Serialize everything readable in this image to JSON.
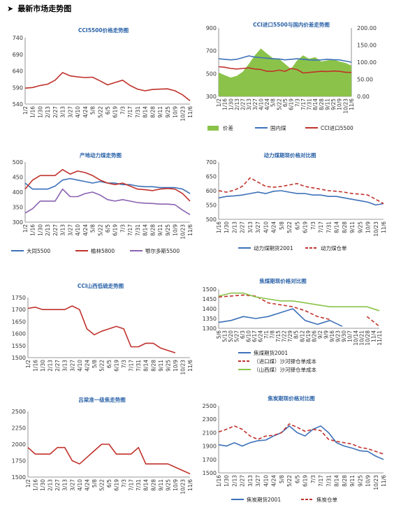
{
  "header": {
    "arrow": "➤",
    "title": "最新市场走势图"
  },
  "colors": {
    "blue": "#3d71b8",
    "red": "#c0312b",
    "purple": "#8a62b0",
    "green": "#8bc34a",
    "darkred": "#b8312f",
    "grayline": "#888888"
  },
  "chart_data": [
    {
      "id": "cci5500",
      "type": "line",
      "title": "CCI5500价格走势图",
      "x": [
        "1/2",
        "1/16",
        "1/30",
        "2/13",
        "2/27",
        "3/13",
        "3/27",
        "4/10",
        "4/24",
        "5/8",
        "5/22",
        "6/5",
        "6/19",
        "7/3",
        "7/17",
        "7/31",
        "8/14",
        "8/28",
        "9/11",
        "9/25",
        "10/9",
        "10/23",
        "11/6"
      ],
      "ylim": [
        540,
        740
      ],
      "yticks": [
        540,
        590,
        640,
        690,
        740
      ],
      "series": [
        {
          "name": "",
          "color": "#c0312b",
          "values": [
            588,
            590,
            596,
            600,
            612,
            635,
            625,
            622,
            620,
            621,
            610,
            598,
            605,
            612,
            596,
            585,
            580,
            584,
            585,
            586,
            580,
            568,
            550
          ]
        }
      ]
    },
    {
      "id": "cci_import",
      "type": "line",
      "title": "CCI进口5500与国内价差走势图",
      "x": [
        "1/2",
        "1/16",
        "1/30",
        "2/13",
        "2/27",
        "3/13",
        "3/27",
        "4/10",
        "4/24",
        "5/8",
        "5/22",
        "6/5",
        "6/19",
        "7/3",
        "7/17",
        "7/31",
        "8/14",
        "8/28",
        "9/11",
        "9/25",
        "10/9",
        "10/23",
        "11/6"
      ],
      "ylim": [
        300,
        900
      ],
      "yticks": [
        300,
        500,
        700,
        900
      ],
      "y2lim": [
        0,
        200
      ],
      "y2ticks": [
        "0.00",
        "50.00",
        "100.00",
        "150.00",
        "200.00"
      ],
      "series": [
        {
          "name": "价差",
          "type": "area",
          "axis": "right",
          "color": "#8bc34a",
          "values": [
            70,
            62,
            55,
            60,
            72,
            95,
            120,
            140,
            125,
            112,
            110,
            95,
            80,
            105,
            120,
            110,
            115,
            102,
            105,
            108,
            102,
            98,
            90
          ]
        },
        {
          "name": "国内煤",
          "color": "#3d71b8",
          "values": [
            630,
            625,
            620,
            625,
            640,
            655,
            645,
            640,
            635,
            630,
            628,
            620,
            625,
            630,
            625,
            620,
            618,
            620,
            625,
            622,
            620,
            610,
            600
          ]
        },
        {
          "name": "CCI进口5500",
          "color": "#c0312b",
          "values": [
            560,
            555,
            545,
            540,
            545,
            550,
            540,
            535,
            520,
            520,
            530,
            520,
            545,
            535,
            505,
            510,
            515,
            520,
            518,
            522,
            520,
            512,
            510
          ]
        }
      ]
    },
    {
      "id": "origin",
      "type": "line",
      "title": "产地动力煤走势图",
      "x": [
        "1/2",
        "1/16",
        "1/30",
        "2/13",
        "2/27",
        "3/13",
        "3/27",
        "4/10",
        "4/24",
        "5/8",
        "5/22",
        "6/5",
        "6/19",
        "7/3",
        "7/17",
        "7/31",
        "8/14",
        "8/28",
        "9/11",
        "9/25",
        "10/9",
        "10/23",
        "11/6"
      ],
      "ylim": [
        300,
        500
      ],
      "yticks": [
        300,
        350,
        400,
        450,
        500
      ],
      "series": [
        {
          "name": "大同5500",
          "color": "#3d71b8",
          "values": [
            430,
            410,
            410,
            410,
            420,
            440,
            445,
            440,
            435,
            430,
            435,
            430,
            430,
            425,
            425,
            420,
            418,
            418,
            415,
            415,
            415,
            410,
            395
          ]
        },
        {
          "name": "榆林5800",
          "color": "#c0312b",
          "values": [
            410,
            440,
            455,
            455,
            455,
            475,
            460,
            470,
            465,
            455,
            440,
            430,
            425,
            430,
            420,
            410,
            408,
            405,
            410,
            412,
            410,
            395,
            370
          ]
        },
        {
          "name": "鄂尔多斯5500",
          "color": "#8a62b0",
          "values": [
            330,
            345,
            370,
            370,
            370,
            410,
            385,
            385,
            395,
            400,
            390,
            375,
            370,
            375,
            370,
            365,
            363,
            362,
            360,
            360,
            358,
            340,
            325
          ]
        }
      ]
    },
    {
      "id": "thermal_futures",
      "type": "line",
      "title": "动力煤期现价格对比图",
      "x": [
        "1/16",
        "1/30",
        "2/13",
        "2/27",
        "3/13",
        "3/27",
        "4/10",
        "4/24",
        "5/8",
        "5/22",
        "6/5",
        "6/19",
        "7/3",
        "7/17",
        "7/31",
        "8/14",
        "8/28",
        "9/11",
        "9/25",
        "10/9",
        "10/23",
        "11/6"
      ],
      "ylim": [
        500,
        700
      ],
      "yticks": [
        500,
        550,
        600,
        650,
        700
      ],
      "series": [
        {
          "name": "动力煤期货2001",
          "color": "#3d71b8",
          "values": [
            575,
            580,
            582,
            585,
            590,
            595,
            590,
            598,
            600,
            595,
            590,
            590,
            585,
            585,
            580,
            580,
            575,
            570,
            565,
            560,
            550,
            555
          ]
        },
        {
          "name": "动力煤仓单",
          "color": "#c0312b",
          "dashed": true,
          "values": [
            600,
            595,
            602,
            615,
            645,
            630,
            615,
            612,
            615,
            620,
            625,
            615,
            610,
            605,
            600,
            598,
            595,
            590,
            588,
            585,
            570,
            555
          ]
        }
      ]
    },
    {
      "id": "cci_shanxi",
      "type": "line",
      "title": "CCI山西低硫走势图",
      "x": [
        "1/2",
        "1/16",
        "1/30",
        "2/13",
        "2/27",
        "3/13",
        "3/27",
        "4/10",
        "4/24",
        "5/8",
        "5/22",
        "6/5",
        "6/19",
        "7/3",
        "7/17",
        "7/31",
        "8/14",
        "8/28",
        "9/11",
        "9/25",
        "10/9",
        "10/23",
        "11/6"
      ],
      "ylim": [
        1500,
        1750
      ],
      "yticks": [
        1500,
        1550,
        1600,
        1650,
        1700,
        1750
      ],
      "series": [
        {
          "name": "",
          "color": "#c0312b",
          "values": [
            1705,
            1710,
            1700,
            1700,
            1700,
            1700,
            1715,
            1700,
            1620,
            1595,
            1610,
            1620,
            1630,
            1620,
            1545,
            1545,
            1560,
            1560,
            1540,
            1530,
            1520,
            null,
            null
          ]
        }
      ]
    },
    {
      "id": "coke_coal",
      "type": "line",
      "title": "焦煤期现价格对比图",
      "x": [
        "5/6",
        "5/20",
        "6/3",
        "6/17",
        "7/1",
        "7/15",
        "7/29",
        "8/12",
        "8/26",
        "9/9",
        "9/23",
        "10/7",
        "10/21",
        "11/4"
      ],
      "xticks": [
        "5/6",
        "5/13",
        "5/20",
        "5/27",
        "6/3",
        "6/10",
        "6/17",
        "6/24",
        "7/1",
        "7/8",
        "7/15",
        "7/22",
        "7/29",
        "8/5",
        "8/12",
        "8/19",
        "8/26",
        "9/2",
        "9/9",
        "9/16",
        "9/23",
        "9/30",
        "10/7",
        "10/14",
        "10/21",
        "10/28",
        "11/4",
        "11/11"
      ],
      "ylim": [
        1300,
        1500
      ],
      "yticks": [
        1300,
        1350,
        1400,
        1450,
        1500
      ],
      "series": [
        {
          "name": "焦煤期货2001",
          "color": "#3d71b8",
          "values": [
            1330,
            1340,
            1360,
            1350,
            1360,
            1380,
            1400,
            1340,
            1320,
            1340,
            1310,
            null,
            null,
            null
          ]
        },
        {
          "name": "（进口煤）沙河驿仓单成本",
          "color": "#c0312b",
          "dashed": true,
          "values": [
            1460,
            1465,
            1470,
            1465,
            1430,
            1420,
            1410,
            1390,
            1360,
            1345,
            null,
            null,
            1360,
            1310
          ]
        },
        {
          "name": "（山西煤）沙河驿仓单成本",
          "color": "#8bc34a",
          "values": [
            1465,
            1480,
            1480,
            1460,
            1450,
            1440,
            1440,
            1430,
            1420,
            1410,
            1410,
            1410,
            1410,
            1390
          ]
        }
      ]
    },
    {
      "id": "lvliang_coke",
      "type": "line",
      "title": "吕梁准一级焦走势图",
      "x": [
        "1/2",
        "1/16",
        "1/30",
        "2/13",
        "2/27",
        "3/13",
        "3/27",
        "4/10",
        "4/24",
        "5/8",
        "5/22",
        "6/5",
        "6/19",
        "7/3",
        "7/17",
        "7/31",
        "8/14",
        "8/28",
        "9/11",
        "9/25",
        "10/9",
        "10/23",
        "11/6"
      ],
      "ylim": [
        1500,
        2500
      ],
      "yticks": [
        1500,
        1750,
        2000,
        2250,
        2500
      ],
      "series": [
        {
          "name": "",
          "color": "#c0312b",
          "values": [
            1950,
            1850,
            1850,
            1850,
            1950,
            1950,
            1750,
            1700,
            1800,
            1900,
            2000,
            2000,
            1850,
            1850,
            1850,
            1950,
            1700,
            1700,
            1700,
            1700,
            1650,
            1600,
            1550
          ]
        }
      ]
    },
    {
      "id": "coke_futures",
      "type": "line",
      "title": "焦炭期现价格对比图",
      "x": [
        "1/16",
        "1/30",
        "2/13",
        "2/27",
        "3/13",
        "3/27",
        "4/10",
        "4/24",
        "5/8",
        "5/22",
        "6/5",
        "6/19",
        "7/3",
        "7/17",
        "7/31",
        "8/14",
        "8/28",
        "9/11",
        "9/25",
        "10/9",
        "10/23",
        "11/6"
      ],
      "ylim": [
        1500,
        2500
      ],
      "yticks": [
        1500,
        1700,
        1900,
        2100,
        2300,
        2500
      ],
      "series": [
        {
          "name": "焦炭期货2001",
          "color": "#3d71b8",
          "values": [
            1920,
            1900,
            1950,
            1900,
            1950,
            1980,
            1990,
            2050,
            2100,
            2200,
            2100,
            2050,
            2150,
            2200,
            2100,
            1950,
            1900,
            1870,
            1830,
            1820,
            1750,
            1700
          ]
        },
        {
          "name": "焦炭仓单",
          "color": "#c0312b",
          "dashed": true,
          "values": [
            2110,
            2150,
            2200,
            2150,
            2050,
            2000,
            2050,
            2060,
            2100,
            2230,
            2180,
            2120,
            2150,
            2130,
            2000,
            1970,
            1950,
            1930,
            1880,
            1860,
            1820,
            1780
          ]
        }
      ]
    }
  ]
}
